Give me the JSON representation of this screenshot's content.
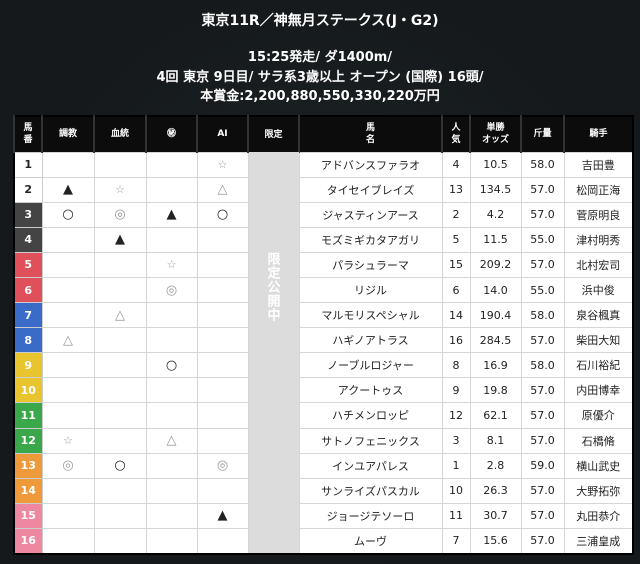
{
  "header": {
    "title": "東京11R／神無月ステークス(J・G2)",
    "line1": "15:25発走/ ダ1400m/",
    "line2": "4回 東京 9日目/ サラ系3歳以上 オープン (国際) 16頭/",
    "line3": "本賞金:2,200,880,550,330,220万円"
  },
  "columns": [
    "馬\n番",
    "調教",
    "血統",
    "㊙",
    "AI",
    "限定",
    "馬\n名",
    "人\n気",
    "単勝\nオッズ",
    "斤量",
    "騎手"
  ],
  "limited_text": "限定公開中",
  "frame_colors": {
    "1": "#ffffff",
    "2": "#ffffff",
    "3": "#444444",
    "4": "#444444",
    "5": "#e0505a",
    "6": "#e0505a",
    "7": "#3a6bc8",
    "8": "#3a6bc8",
    "9": "#e8c52e",
    "10": "#e8c52e",
    "11": "#3aa84a",
    "12": "#3aa84a",
    "13": "#ef9a3a",
    "14": "#ef9a3a",
    "15": "#ee88a0",
    "16": "#ee88a0"
  },
  "rows": [
    {
      "num": "1",
      "frame": 1,
      "training": "",
      "bloodline": "",
      "secret": "",
      "ai": "☆",
      "name": "アドバンスファラオ",
      "pop": "4",
      "odds": "10.5",
      "weight": "58.0",
      "jockey": "吉田豊"
    },
    {
      "num": "2",
      "frame": 2,
      "training": "▲",
      "bloodline": "☆",
      "secret": "",
      "ai": "△",
      "name": "タイセイブレイズ",
      "pop": "13",
      "odds": "134.5",
      "weight": "57.0",
      "jockey": "松岡正海"
    },
    {
      "num": "3",
      "frame": 3,
      "training": "○",
      "bloodline": "◎",
      "secret": "▲",
      "ai": "○",
      "name": "ジャスティンアース",
      "pop": "2",
      "odds": "4.2",
      "weight": "57.0",
      "jockey": "菅原明良"
    },
    {
      "num": "4",
      "frame": 4,
      "training": "",
      "bloodline": "▲",
      "secret": "",
      "ai": "",
      "name": "モズミギカタアガリ",
      "pop": "5",
      "odds": "11.5",
      "weight": "55.0",
      "jockey": "津村明秀"
    },
    {
      "num": "5",
      "frame": 5,
      "training": "",
      "bloodline": "",
      "secret": "☆",
      "ai": "",
      "name": "パラシュラーマ",
      "pop": "15",
      "odds": "209.2",
      "weight": "57.0",
      "jockey": "北村宏司"
    },
    {
      "num": "6",
      "frame": 6,
      "training": "",
      "bloodline": "",
      "secret": "◎",
      "ai": "",
      "name": "リジル",
      "pop": "6",
      "odds": "14.0",
      "weight": "55.0",
      "jockey": "浜中俊"
    },
    {
      "num": "7",
      "frame": 7,
      "training": "",
      "bloodline": "△",
      "secret": "",
      "ai": "",
      "name": "マルモリスペシャル",
      "pop": "14",
      "odds": "190.4",
      "weight": "58.0",
      "jockey": "泉谷楓真"
    },
    {
      "num": "8",
      "frame": 8,
      "training": "△",
      "bloodline": "",
      "secret": "",
      "ai": "",
      "name": "ハギノアトラス",
      "pop": "16",
      "odds": "284.5",
      "weight": "57.0",
      "jockey": "柴田大知"
    },
    {
      "num": "9",
      "frame": 9,
      "training": "",
      "bloodline": "",
      "secret": "○",
      "ai": "",
      "name": "ノーブルロジャー",
      "pop": "8",
      "odds": "16.9",
      "weight": "58.0",
      "jockey": "石川裕紀"
    },
    {
      "num": "10",
      "frame": 10,
      "training": "",
      "bloodline": "",
      "secret": "",
      "ai": "",
      "name": "アクートゥス",
      "pop": "9",
      "odds": "19.8",
      "weight": "57.0",
      "jockey": "内田博幸"
    },
    {
      "num": "11",
      "frame": 11,
      "training": "",
      "bloodline": "",
      "secret": "",
      "ai": "",
      "name": "ハチメンロッピ",
      "pop": "12",
      "odds": "62.1",
      "weight": "57.0",
      "jockey": "原優介"
    },
    {
      "num": "12",
      "frame": 12,
      "training": "☆",
      "bloodline": "",
      "secret": "△",
      "ai": "",
      "name": "サトノフェニックス",
      "pop": "3",
      "odds": "8.1",
      "weight": "57.0",
      "jockey": "石橋脩"
    },
    {
      "num": "13",
      "frame": 13,
      "training": "◎",
      "bloodline": "○",
      "secret": "",
      "ai": "◎",
      "name": "インユアパレス",
      "pop": "1",
      "odds": "2.8",
      "weight": "59.0",
      "jockey": "横山武史"
    },
    {
      "num": "14",
      "frame": 14,
      "training": "",
      "bloodline": "",
      "secret": "",
      "ai": "",
      "name": "サンライズパスカル",
      "pop": "10",
      "odds": "26.3",
      "weight": "57.0",
      "jockey": "大野拓弥"
    },
    {
      "num": "15",
      "frame": 15,
      "training": "",
      "bloodline": "",
      "secret": "",
      "ai": "▲",
      "name": "ジョージテソーロ",
      "pop": "11",
      "odds": "30.7",
      "weight": "57.0",
      "jockey": "丸田恭介"
    },
    {
      "num": "16",
      "frame": 16,
      "training": "",
      "bloodline": "",
      "secret": "",
      "ai": "",
      "name": "ムーヴ",
      "pop": "7",
      "odds": "15.6",
      "weight": "57.0",
      "jockey": "三浦皇成"
    }
  ]
}
